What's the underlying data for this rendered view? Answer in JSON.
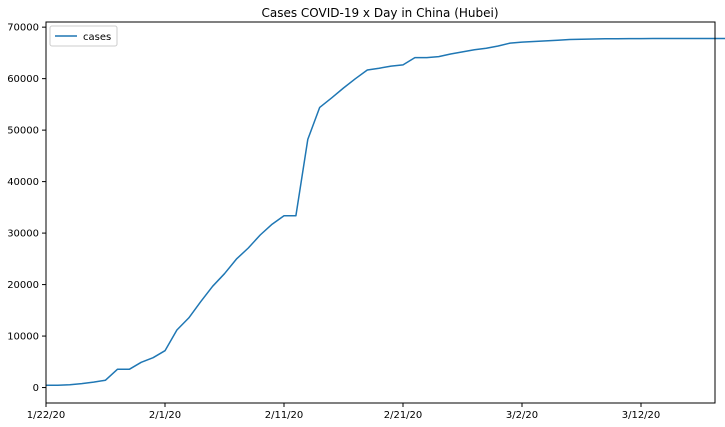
{
  "chart_data": {
    "type": "line",
    "title": "Cases  COVID-19 x Day in China (Hubei)",
    "xlabel": "",
    "ylabel": "",
    "x_start": "1/22/20",
    "x_end": "3/20/20",
    "x_tick_labels": [
      "1/22/20",
      "2/1/20",
      "2/11/20",
      "2/21/20",
      "3/2/20",
      "3/12/20"
    ],
    "y_tick_values": [
      0,
      10000,
      20000,
      30000,
      40000,
      50000,
      60000,
      70000
    ],
    "ylim": [
      -3000,
      71000
    ],
    "grid": false,
    "legend": {
      "position": "top-left",
      "entries": [
        "cases"
      ]
    },
    "series": [
      {
        "name": "cases",
        "color": "#1f77b4",
        "values": [
          444,
          444,
          549,
          761,
          1058,
          1423,
          3554,
          3554,
          4903,
          5806,
          7153,
          11177,
          13522,
          16678,
          19665,
          22112,
          24953,
          27100,
          29631,
          31728,
          33366,
          33366,
          48206,
          54406,
          56249,
          58182,
          59989,
          61682,
          62031,
          62442,
          62662,
          64084,
          64084,
          64287,
          64786,
          65187,
          65596,
          65914,
          66337,
          66907,
          67103,
          67217,
          67332,
          67466,
          67592,
          67666,
          67707,
          67743,
          67760,
          67773,
          67781,
          67786,
          67790,
          67794,
          67798,
          67799,
          67800,
          67800,
          67800
        ]
      }
    ]
  }
}
